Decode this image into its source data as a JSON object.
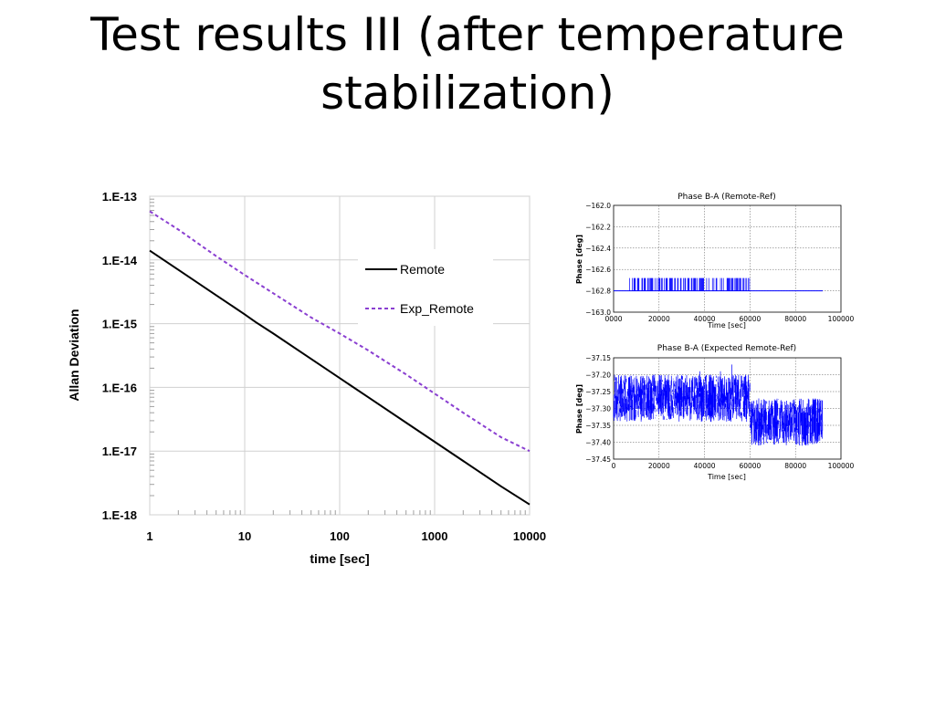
{
  "slide": {
    "title_line1": "Test results III (after temperature",
    "title_line2": "stabilization)"
  },
  "chart_data": [
    {
      "type": "line",
      "scale": "log-log",
      "xlabel": "time [sec]",
      "ylabel": "Allan Deviation",
      "xlim": [
        1,
        10000
      ],
      "ylim": [
        1e-18,
        1e-13
      ],
      "x_tick_labels": [
        "1",
        "10",
        "100",
        "1000",
        "10000"
      ],
      "y_tick_labels": [
        "1.E-18",
        "1.E-17",
        "1.E-16",
        "1.E-15",
        "1.E-14",
        "1.E-13"
      ],
      "grid": true,
      "legend": "right",
      "series": [
        {
          "name": "Remote",
          "color": "#000000",
          "style": "solid",
          "x": [
            1,
            2,
            5,
            10,
            13,
            20,
            50,
            100,
            200,
            500,
            1000,
            2000,
            5000,
            10000
          ],
          "y": [
            1.4e-14,
            7e-15,
            2.8e-15,
            1.4e-15,
            1.06e-15,
            7e-16,
            2.8e-16,
            1.4e-16,
            7e-17,
            2.8e-17,
            1.4e-17,
            7e-18,
            2.8e-18,
            1.45e-18
          ]
        },
        {
          "name": "Exp_Remote",
          "color": "#8a3fd1",
          "style": "dashed",
          "x": [
            1,
            2,
            5,
            10,
            20,
            50,
            100,
            200,
            500,
            1000,
            2000,
            5000,
            10000
          ],
          "y": [
            5.8e-14,
            3e-14,
            1.15e-14,
            5.8e-15,
            3e-15,
            1.25e-15,
            7e-16,
            3.8e-16,
            1.6e-16,
            8e-17,
            4e-17,
            1.65e-17,
            1e-17
          ]
        }
      ]
    },
    {
      "type": "line",
      "title": "Phase B-A (Remote-Ref)",
      "xlabel": "Time [sec]",
      "ylabel": "Phase [deg]",
      "xlim": [
        0,
        100000
      ],
      "ylim": [
        -163.0,
        -162.0
      ],
      "x_tick_labels": [
        "0000",
        "20000",
        "40000",
        "60000",
        "80000",
        "100000"
      ],
      "y_tick_labels": [
        "−162.0",
        "−162.2",
        "−162.4",
        "−162.6",
        "−162.8",
        "−163.0"
      ],
      "grid": true,
      "series": [
        {
          "color": "#0000ff",
          "baseline": -162.8,
          "spike_level": -162.68,
          "x_range": [
            0,
            92000
          ],
          "spike_x_range": [
            7000,
            60000
          ]
        }
      ]
    },
    {
      "type": "line",
      "title": "Phase B-A (Expected Remote-Ref)",
      "xlabel": "Time [sec]",
      "ylabel": "Phase [deg]",
      "xlim": [
        0,
        100000
      ],
      "ylim": [
        -37.45,
        -37.15
      ],
      "x_tick_labels": [
        "0",
        "20000",
        "40000",
        "60000",
        "80000",
        "100000"
      ],
      "y_tick_labels": [
        "−37.15",
        "−37.20",
        "−37.25",
        "−37.30",
        "−37.35",
        "−37.40",
        "−37.45"
      ],
      "grid": true,
      "series": [
        {
          "color": "#0000ff",
          "segments": [
            {
              "x_from": 0,
              "x_to": 60000,
              "low": -37.34,
              "high": -37.2
            },
            {
              "x_from": 60000,
              "x_to": 92000,
              "low": -37.41,
              "high": -37.27
            }
          ]
        }
      ]
    }
  ]
}
